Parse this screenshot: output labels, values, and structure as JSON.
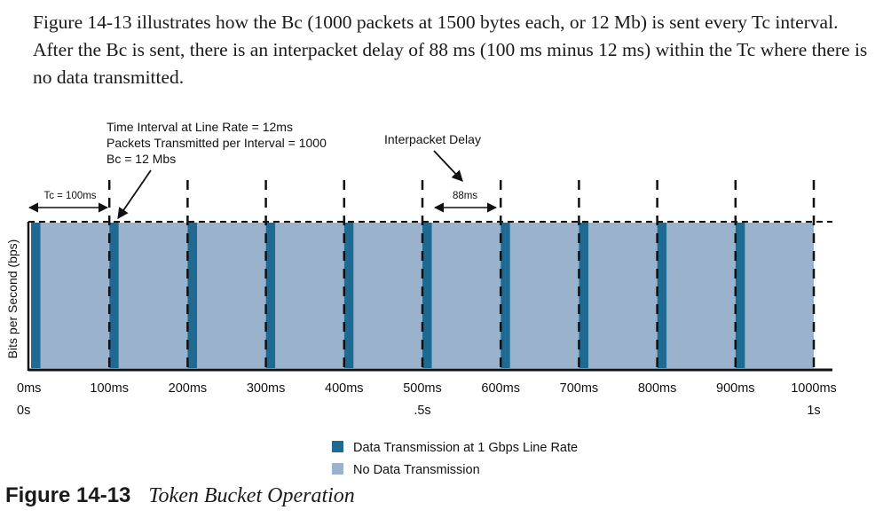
{
  "intro_text": "Figure 14-13 illustrates how the Bc (1000 packets at 1500 bytes each, or 12 Mb) is sent every Tc interval. After the Bc is sent, there is an interpacket delay of 88 ms (100 ms minus 12 ms) within the Tc where there is no data transmitted.",
  "diagram": {
    "y_axis_label": "Bits per Second (bps)",
    "annotation_lines": [
      "Time Interval at Line Rate = 12ms",
      "Packets Transmitted per Interval = 1000",
      "Bc = 12 Mbs"
    ],
    "interpacket_delay_label": "Interpacket Delay",
    "tc_label": "Tc = 100ms",
    "delay_label": "88ms",
    "tick_labels": [
      "0ms",
      "100ms",
      "200ms",
      "300ms",
      "400ms",
      "500ms",
      "600ms",
      "700ms",
      "800ms",
      "900ms",
      "1000ms"
    ],
    "sub_tick_labels": [
      {
        "at": "0ms",
        "label": "0s"
      },
      {
        "at": "500ms",
        "label": ".5s"
      },
      {
        "at": "1000ms",
        "label": "1s"
      }
    ],
    "interval_ms": 100,
    "transmit_ms": 12,
    "interval_count": 10,
    "legend": [
      {
        "label": "Data Transmission at 1 Gbps Line Rate",
        "color": "#1f6a93"
      },
      {
        "label": "No Data Transmission",
        "color": "#9bb2cc"
      }
    ]
  },
  "caption": {
    "number": "Figure 14-13",
    "title": "Token Bucket Operation"
  }
}
